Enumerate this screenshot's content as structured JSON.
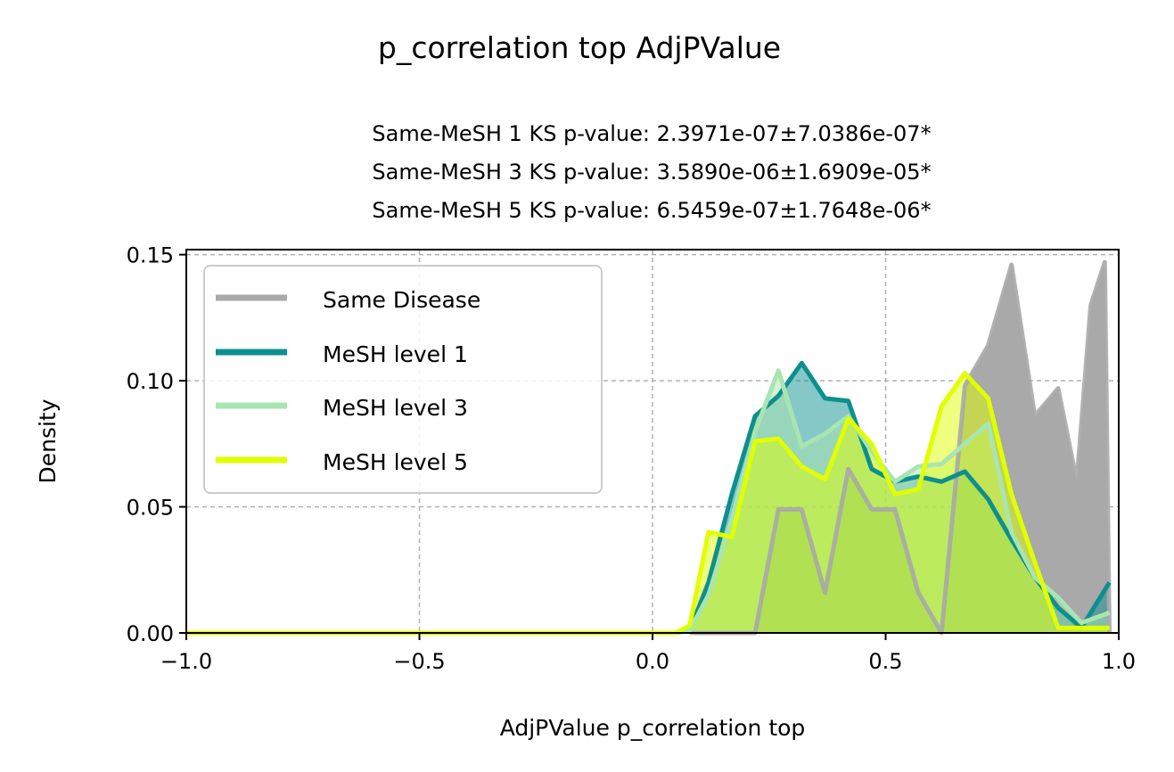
{
  "chart_data": {
    "type": "area",
    "title": "p_correlation top AdjPValue",
    "subtitle_lines": [
      "Same-MeSH 1 KS p-value: 2.3971e-07±7.0386e-07*",
      "Same-MeSH 3 KS p-value: 3.5890e-06±1.6909e-05*",
      "Same-MeSH 5 KS p-value: 6.5459e-07±1.7648e-06*"
    ],
    "xlabel": "AdjPValue p_correlation top",
    "ylabel": "Density",
    "xlim": [
      -1.0,
      1.0
    ],
    "ylim": [
      0.0,
      0.152
    ],
    "x_ticks": [
      -1.0,
      -0.5,
      0.0,
      0.5,
      1.0
    ],
    "x_tick_labels": [
      "−1.0",
      "−0.5",
      "0.0",
      "0.5",
      "1.0"
    ],
    "y_ticks": [
      0.0,
      0.05,
      0.1,
      0.15
    ],
    "y_tick_labels": [
      "0.00",
      "0.05",
      "0.10",
      "0.15"
    ],
    "grid": true,
    "legend_position": "top-left",
    "series": [
      {
        "name": "Same Disease",
        "color": "#a9a9a9",
        "fill_opacity": 1.0,
        "line_opacity": 0.9,
        "x": [
          0.08,
          0.14,
          0.22,
          0.27,
          0.32,
          0.37,
          0.42,
          0.47,
          0.52,
          0.57,
          0.62,
          0.67,
          0.72,
          0.77,
          0.82,
          0.87,
          0.91,
          0.94,
          0.97,
          0.98
        ],
        "y": [
          0.0,
          0.0,
          0.0,
          0.049,
          0.049,
          0.016,
          0.065,
          0.049,
          0.049,
          0.016,
          0.0,
          0.098,
          0.114,
          0.146,
          0.086,
          0.097,
          0.06,
          0.13,
          0.147,
          0.0
        ]
      },
      {
        "name": "MeSH level 1",
        "color": "#0e8f8f",
        "fill_opacity": 0.5,
        "line_opacity": 1.0,
        "x": [
          -1.0,
          0.05,
          0.08,
          0.12,
          0.17,
          0.22,
          0.27,
          0.32,
          0.37,
          0.42,
          0.47,
          0.52,
          0.57,
          0.62,
          0.67,
          0.72,
          0.77,
          0.82,
          0.87,
          0.92,
          0.98
        ],
        "y": [
          0.0,
          0.0,
          0.001,
          0.02,
          0.055,
          0.086,
          0.094,
          0.107,
          0.093,
          0.092,
          0.065,
          0.06,
          0.062,
          0.06,
          0.064,
          0.053,
          0.037,
          0.022,
          0.01,
          0.002,
          0.02
        ]
      },
      {
        "name": "MeSH level 3",
        "color": "#a9e5b0",
        "fill_opacity": 0.5,
        "line_opacity": 1.0,
        "x": [
          -1.0,
          0.05,
          0.08,
          0.12,
          0.17,
          0.22,
          0.27,
          0.32,
          0.37,
          0.42,
          0.47,
          0.52,
          0.57,
          0.62,
          0.67,
          0.72,
          0.77,
          0.82,
          0.87,
          0.92,
          0.98
        ],
        "y": [
          0.0,
          0.0,
          0.001,
          0.015,
          0.045,
          0.08,
          0.104,
          0.074,
          0.079,
          0.086,
          0.072,
          0.06,
          0.066,
          0.067,
          0.075,
          0.083,
          0.04,
          0.022,
          0.014,
          0.004,
          0.008
        ]
      },
      {
        "name": "MeSH level 5",
        "color": "#e0ff00",
        "fill_opacity": 0.5,
        "line_opacity": 1.0,
        "x": [
          -1.0,
          0.05,
          0.08,
          0.12,
          0.17,
          0.22,
          0.27,
          0.32,
          0.37,
          0.42,
          0.47,
          0.52,
          0.57,
          0.62,
          0.67,
          0.72,
          0.77,
          0.82,
          0.87,
          0.92,
          0.98
        ],
        "y": [
          0.0,
          0.0,
          0.003,
          0.04,
          0.038,
          0.076,
          0.077,
          0.066,
          0.061,
          0.085,
          0.075,
          0.055,
          0.057,
          0.09,
          0.103,
          0.093,
          0.055,
          0.028,
          0.002,
          0.002,
          0.002
        ]
      }
    ],
    "overlap_fill_color": "#b3e04a"
  }
}
